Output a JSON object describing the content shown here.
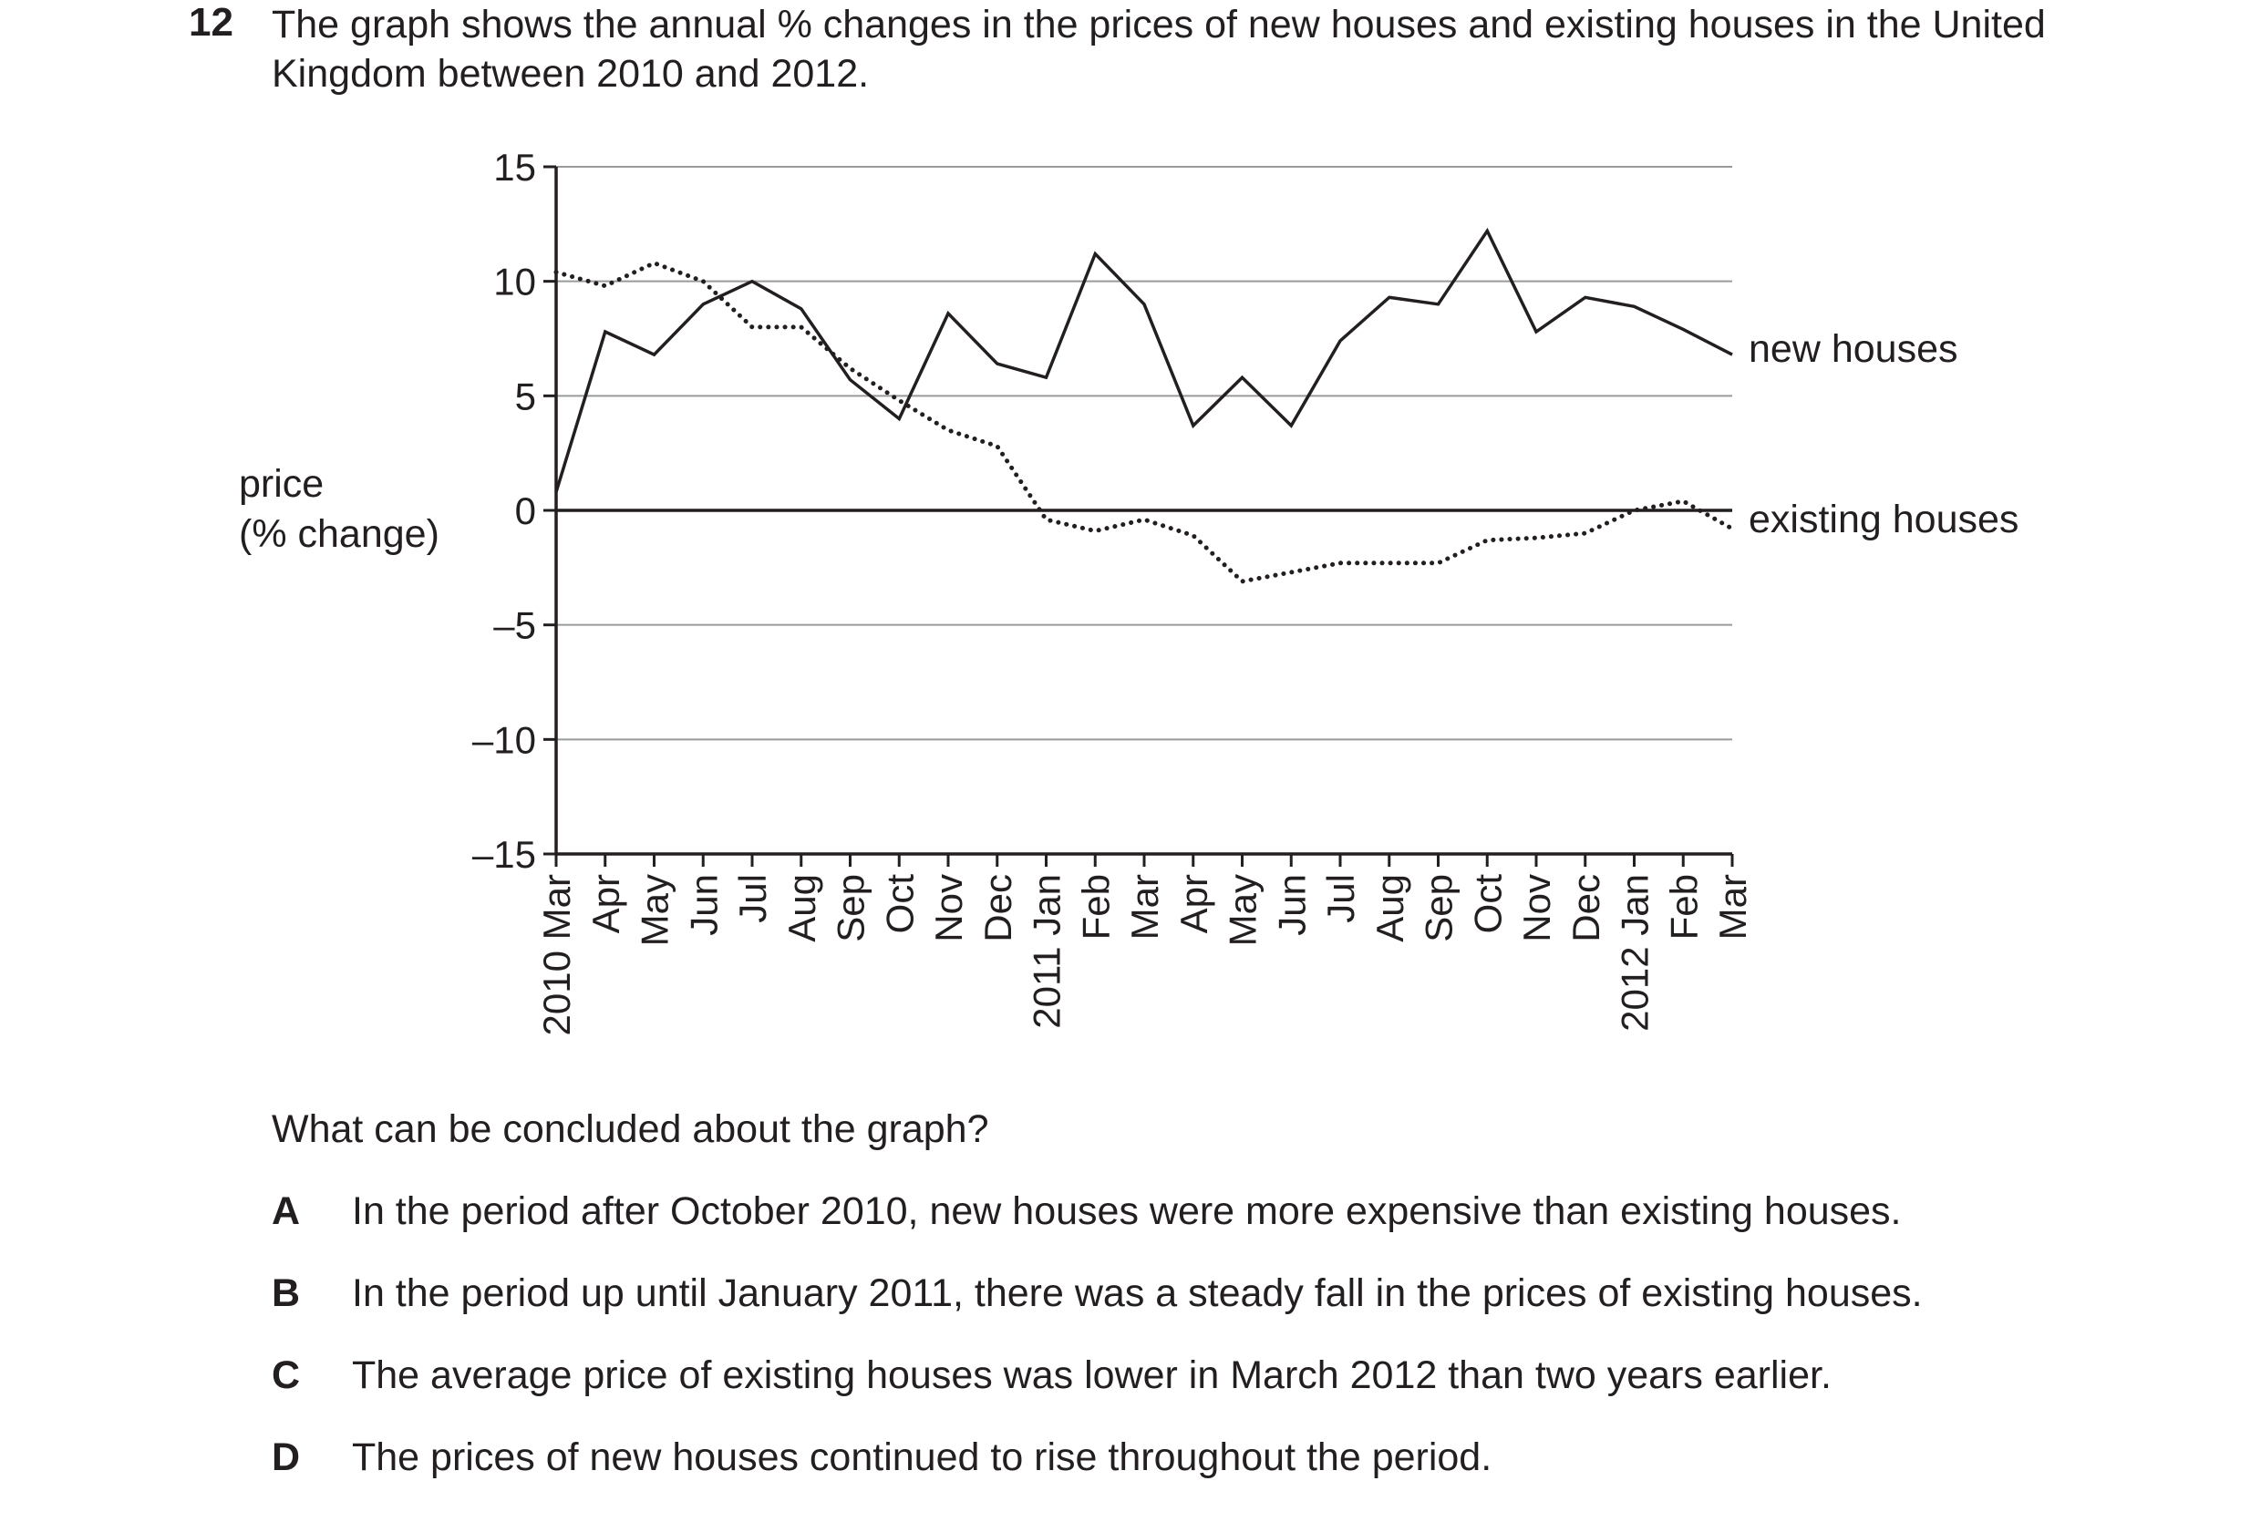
{
  "question": {
    "number": "12",
    "text": "The graph shows the annual % changes in the prices of new houses and existing houses in the United Kingdom between 2010 and 2012.",
    "prompt": "What can be concluded about the graph?",
    "options": [
      {
        "letter": "A",
        "text": "In the period after October 2010, new houses were more expensive than existing houses."
      },
      {
        "letter": "B",
        "text": "In the period up until January 2011, there was a steady fall in the prices of existing houses."
      },
      {
        "letter": "C",
        "text": "The average price of existing houses was lower in March 2012 than two years earlier."
      },
      {
        "letter": "D",
        "text": "The prices of new houses continued to rise throughout the period."
      }
    ]
  },
  "chart_data": {
    "type": "line",
    "title": "",
    "ylabel_lines": [
      "price",
      "(% change)"
    ],
    "xlabel": "",
    "ylim": [
      -15,
      15
    ],
    "yticks": [
      15,
      10,
      5,
      0,
      -5,
      -10,
      -15
    ],
    "ytick_labels": [
      "15",
      "10",
      "5",
      "0",
      "–5",
      "–10",
      "–15"
    ],
    "grid": "horizontal",
    "categories": [
      "2010 Mar",
      "Apr",
      "May",
      "Jun",
      "Jul",
      "Aug",
      "Sep",
      "Oct",
      "Nov",
      "Dec",
      "2011 Jan",
      "Feb",
      "Mar",
      "Apr",
      "May",
      "Jun",
      "Jul",
      "Aug",
      "Sep",
      "Oct",
      "Nov",
      "Dec",
      "2012 Jan",
      "Feb",
      "Mar"
    ],
    "series": [
      {
        "name": "new houses",
        "style": "solid",
        "values": [
          0.8,
          7.8,
          6.8,
          9.0,
          10.0,
          8.8,
          5.7,
          4.0,
          8.6,
          6.4,
          5.8,
          11.2,
          9.0,
          3.7,
          5.8,
          3.7,
          7.4,
          9.3,
          9.0,
          12.2,
          7.8,
          9.3,
          8.9,
          7.9,
          6.8
        ]
      },
      {
        "name": "existing houses",
        "style": "dotted",
        "values": [
          10.4,
          9.8,
          10.8,
          10.0,
          8.0,
          8.0,
          6.2,
          4.8,
          3.5,
          2.8,
          -0.4,
          -0.9,
          -0.4,
          -1.1,
          -3.1,
          -2.7,
          -2.3,
          -2.3,
          -2.3,
          -1.3,
          -1.2,
          -1.0,
          0.0,
          0.4,
          -0.8
        ]
      }
    ],
    "colors": {
      "line": "#231f20",
      "grid": "#9a9a9a"
    }
  }
}
